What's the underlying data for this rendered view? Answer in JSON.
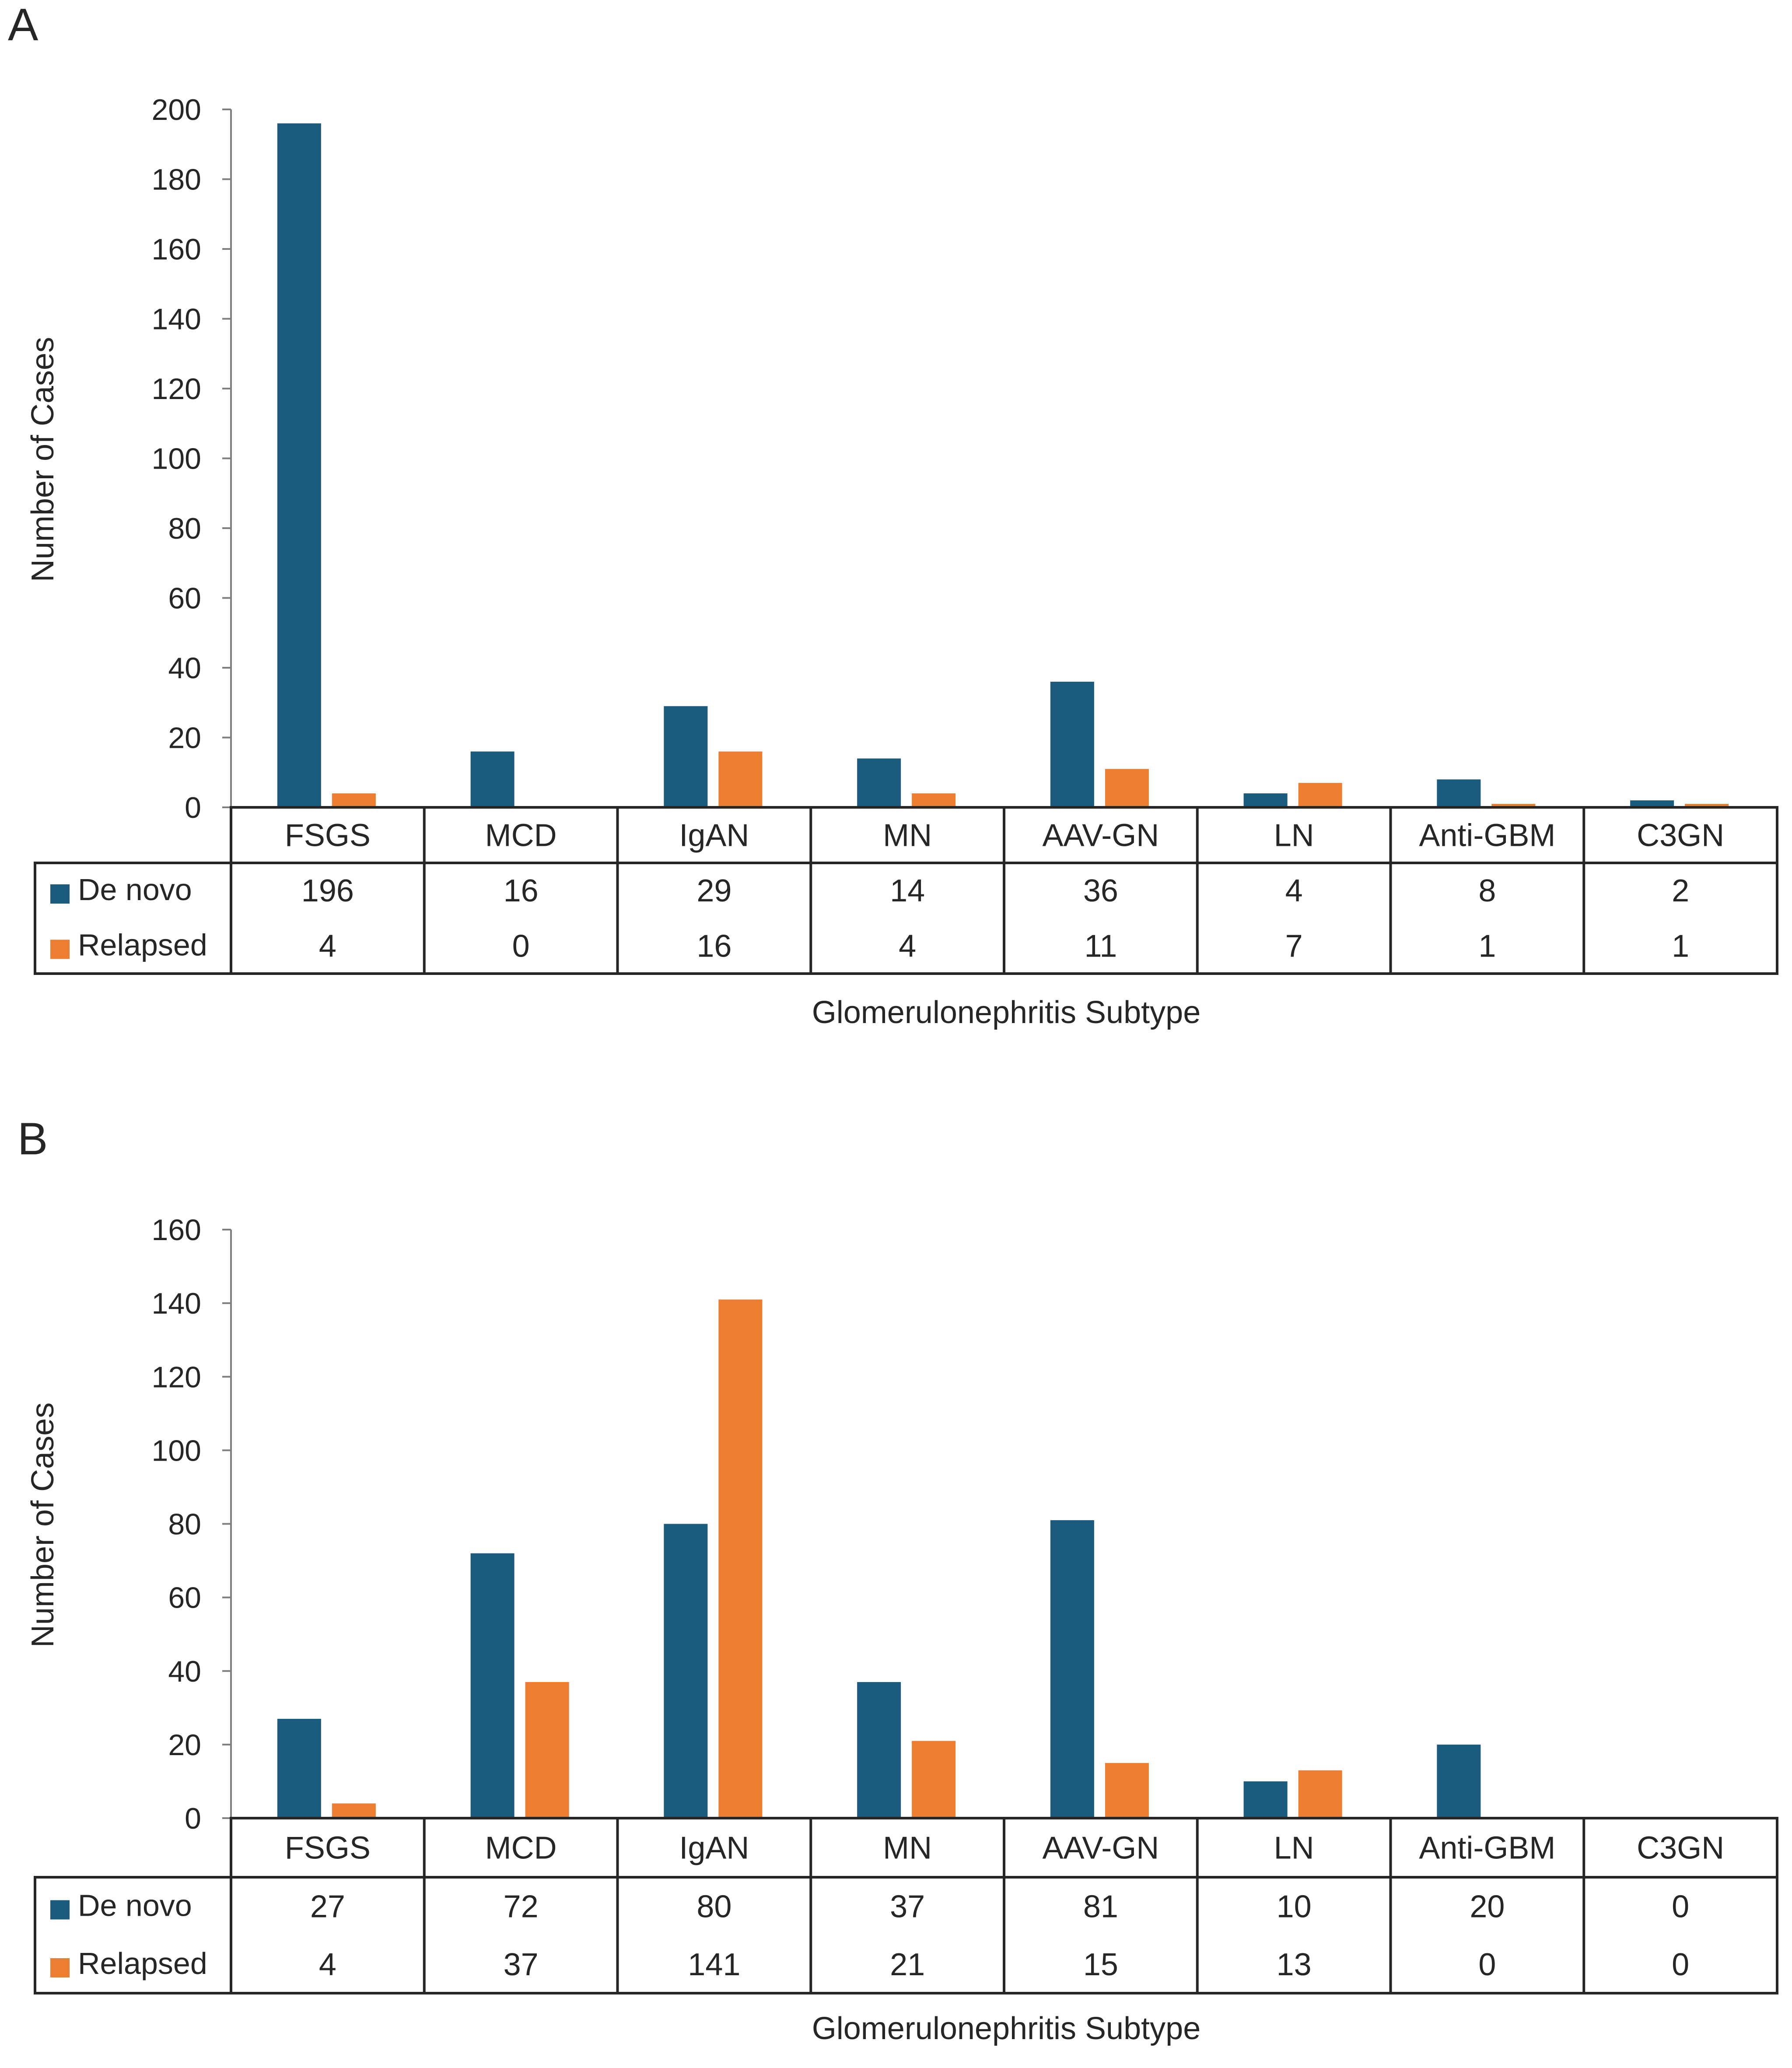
{
  "chart_data": [
    {
      "panel": "A",
      "type": "bar",
      "ylabel": "Number of Cases",
      "xlabel": "Glomerulonephritis Subtype",
      "ylim": [
        0,
        200
      ],
      "yticks": [
        0,
        20,
        40,
        60,
        80,
        100,
        120,
        140,
        160,
        180,
        200
      ],
      "categories": [
        "FSGS",
        "MCD",
        "IgAN",
        "MN",
        "AAV-GN",
        "LN",
        "Anti-GBM",
        "C3GN"
      ],
      "series": [
        {
          "name": "De novo",
          "color": "#1b5b7d",
          "values": [
            196,
            16,
            29,
            14,
            36,
            4,
            8,
            2
          ]
        },
        {
          "name": "Relapsed",
          "color": "#ed7d31",
          "values": [
            4,
            0,
            16,
            4,
            11,
            7,
            1,
            1
          ]
        }
      ],
      "data_table": true
    },
    {
      "panel": "B",
      "type": "bar",
      "ylabel": "Number of Cases",
      "xlabel": "Glomerulonephritis Subtype",
      "ylim": [
        0,
        160
      ],
      "yticks": [
        0,
        20,
        40,
        60,
        80,
        100,
        120,
        140,
        160
      ],
      "categories": [
        "FSGS",
        "MCD",
        "IgAN",
        "MN",
        "AAV-GN",
        "LN",
        "Anti-GBM",
        "C3GN"
      ],
      "series": [
        {
          "name": "De novo",
          "color": "#1b5b7d",
          "values": [
            27,
            72,
            80,
            37,
            81,
            10,
            20,
            0
          ]
        },
        {
          "name": "Relapsed",
          "color": "#ed7d31",
          "values": [
            4,
            37,
            141,
            21,
            15,
            13,
            0,
            0
          ]
        }
      ],
      "data_table": true
    }
  ]
}
